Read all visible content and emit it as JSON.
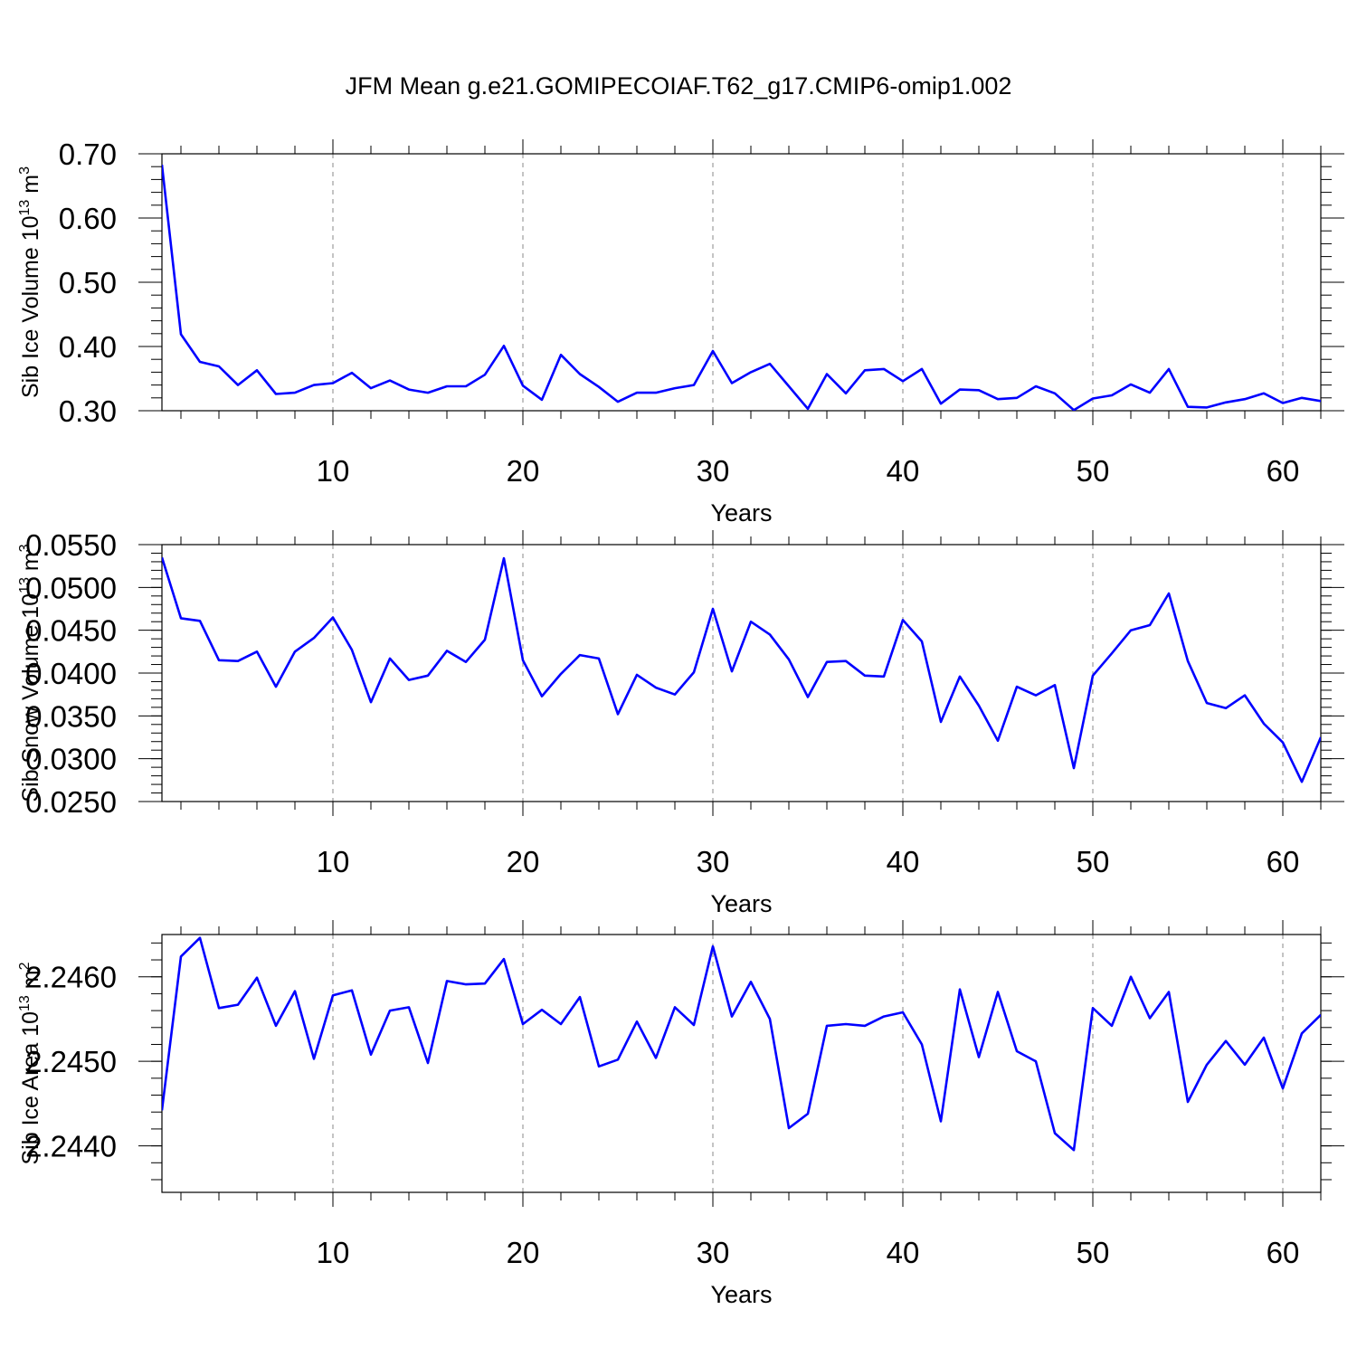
{
  "title": "JFM Mean g.e21.GOMIPECOIAF.T62_g17.CMIP6-omip1.002",
  "line_color": "#0000ff",
  "chart_data": [
    {
      "type": "line",
      "title": "",
      "xlabel": "Years",
      "ylabel": {
        "base": "Sib Ice Volume 10",
        "sup1": "13",
        "mid": " m",
        "sup2": "3"
      },
      "xlim": [
        1,
        62
      ],
      "ylim": [
        0.3,
        0.7
      ],
      "xticks": [
        10,
        20,
        30,
        40,
        50,
        60
      ],
      "yticks": [
        "0.30",
        "0.40",
        "0.50",
        "0.60",
        "0.70"
      ],
      "grid": "vertical dashed at major x ticks",
      "x": [
        1,
        2,
        3,
        4,
        5,
        6,
        7,
        8,
        9,
        10,
        11,
        12,
        13,
        14,
        15,
        16,
        17,
        18,
        19,
        20,
        21,
        22,
        23,
        24,
        25,
        26,
        27,
        28,
        29,
        30,
        31,
        32,
        33,
        34,
        35,
        36,
        37,
        38,
        39,
        40,
        41,
        42,
        43,
        44,
        45,
        46,
        47,
        48,
        49,
        50,
        51,
        52,
        53,
        54,
        55,
        56,
        57,
        58,
        59,
        60,
        61,
        62
      ],
      "series": [
        {
          "values": [
            0.683,
            0.419,
            0.376,
            0.369,
            0.34,
            0.363,
            0.326,
            0.328,
            0.34,
            0.343,
            0.359,
            0.335,
            0.347,
            0.333,
            0.328,
            0.338,
            0.338,
            0.356,
            0.401,
            0.339,
            0.317,
            0.387,
            0.357,
            0.337,
            0.314,
            0.328,
            0.328,
            0.335,
            0.34,
            0.393,
            0.343,
            0.36,
            0.373,
            0.338,
            0.303,
            0.357,
            0.327,
            0.363,
            0.365,
            0.346,
            0.365,
            0.311,
            0.333,
            0.332,
            0.318,
            0.32,
            0.338,
            0.327,
            0.301,
            0.319,
            0.324,
            0.341,
            0.328,
            0.365,
            0.306,
            0.305,
            0.313,
            0.318,
            0.327,
            0.312,
            0.32,
            0.315
          ]
        }
      ]
    },
    {
      "type": "line",
      "title": "",
      "xlabel": "Years",
      "ylabel": {
        "base": "Sib Snow Volume 10",
        "sup1": "13",
        "mid": " m",
        "sup2": "3"
      },
      "xlim": [
        1,
        62
      ],
      "ylim": [
        0.025,
        0.055
      ],
      "xticks": [
        10,
        20,
        30,
        40,
        50,
        60
      ],
      "yticks": [
        "0.0250",
        "0.0300",
        "0.0350",
        "0.0400",
        "0.0450",
        "0.0500",
        "0.0550"
      ],
      "grid": "vertical dashed at major x ticks",
      "x": [
        1,
        2,
        3,
        4,
        5,
        6,
        7,
        8,
        9,
        10,
        11,
        12,
        13,
        14,
        15,
        16,
        17,
        18,
        19,
        20,
        21,
        22,
        23,
        24,
        25,
        26,
        27,
        28,
        29,
        30,
        31,
        32,
        33,
        34,
        35,
        36,
        37,
        38,
        39,
        40,
        41,
        42,
        43,
        44,
        45,
        46,
        47,
        48,
        49,
        50,
        51,
        52,
        53,
        54,
        55,
        56,
        57,
        58,
        59,
        60,
        61,
        62
      ],
      "series": [
        {
          "values": [
            0.0535,
            0.0464,
            0.0461,
            0.0415,
            0.0414,
            0.0425,
            0.0384,
            0.0425,
            0.0441,
            0.0465,
            0.0427,
            0.0366,
            0.0417,
            0.0392,
            0.0397,
            0.0426,
            0.0413,
            0.0439,
            0.0534,
            0.0415,
            0.0373,
            0.0399,
            0.0421,
            0.0417,
            0.0352,
            0.0398,
            0.0383,
            0.0375,
            0.0401,
            0.0475,
            0.0402,
            0.046,
            0.0445,
            0.0416,
            0.0372,
            0.0413,
            0.0414,
            0.0397,
            0.0396,
            0.0462,
            0.0437,
            0.0343,
            0.0396,
            0.0362,
            0.0321,
            0.0384,
            0.0374,
            0.0386,
            0.0289,
            0.0397,
            0.0423,
            0.045,
            0.0456,
            0.0493,
            0.0414,
            0.0365,
            0.0359,
            0.0374,
            0.0341,
            0.0319,
            0.0273,
            0.0325
          ]
        }
      ]
    },
    {
      "type": "line",
      "title": "",
      "xlabel": "Years",
      "ylabel": {
        "base": "Sib Ice Area 10",
        "sup1": "13",
        "mid": " m",
        "sup2": "2"
      },
      "xlim": [
        1,
        62
      ],
      "ylim": [
        2.24345,
        2.2465
      ],
      "xticks": [
        10,
        20,
        30,
        40,
        50,
        60
      ],
      "yticks": [
        "2.2440",
        "2.2450",
        "2.2460"
      ],
      "grid": "vertical dashed at major x ticks",
      "x": [
        1,
        2,
        3,
        4,
        5,
        6,
        7,
        8,
        9,
        10,
        11,
        12,
        13,
        14,
        15,
        16,
        17,
        18,
        19,
        20,
        21,
        22,
        23,
        24,
        25,
        26,
        27,
        28,
        29,
        30,
        31,
        32,
        33,
        34,
        35,
        36,
        37,
        38,
        39,
        40,
        41,
        42,
        43,
        44,
        45,
        46,
        47,
        48,
        49,
        50,
        51,
        52,
        53,
        54,
        55,
        56,
        57,
        58,
        59,
        60,
        61,
        62
      ],
      "series": [
        {
          "values": [
            2.24442,
            2.24624,
            2.24646,
            2.24563,
            2.24567,
            2.24599,
            2.24542,
            2.24583,
            2.24503,
            2.24578,
            2.24584,
            2.24508,
            2.2456,
            2.24564,
            2.24498,
            2.24595,
            2.24591,
            2.24592,
            2.24621,
            2.24544,
            2.24561,
            2.24544,
            2.24576,
            2.24494,
            2.24502,
            2.24547,
            2.24504,
            2.24564,
            2.24543,
            2.24636,
            2.24553,
            2.24594,
            2.2455,
            2.24421,
            2.24438,
            2.24542,
            2.24544,
            2.24542,
            2.24553,
            2.24558,
            2.2452,
            2.24429,
            2.24585,
            2.24505,
            2.24582,
            2.24512,
            2.245,
            2.24415,
            2.24395,
            2.24563,
            2.24542,
            2.246,
            2.24551,
            2.24582,
            2.24452,
            2.24496,
            2.24524,
            2.24496,
            2.24528,
            2.24468,
            2.24533,
            2.24555
          ]
        }
      ]
    }
  ]
}
